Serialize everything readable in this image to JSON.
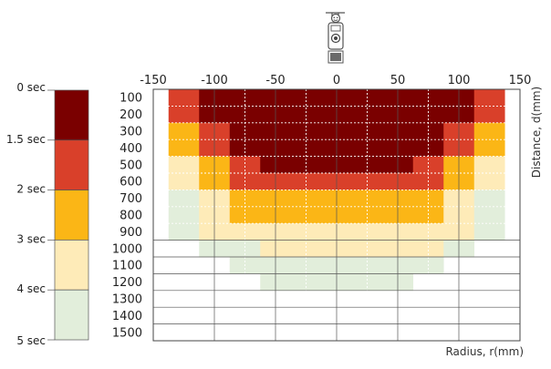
{
  "chart_data": {
    "type": "heatmap",
    "x_axis": {
      "label": "Radius, r(mm)",
      "range": [
        -150,
        150
      ],
      "ticks": [
        -150,
        -100,
        -50,
        0,
        50,
        100,
        150
      ],
      "position": "top"
    },
    "y_axis": {
      "label": "Distance, d(mm)",
      "range": [
        50,
        1550
      ],
      "ticks": [
        100,
        200,
        300,
        400,
        500,
        600,
        700,
        800,
        900,
        1000,
        1100,
        1200,
        1300,
        1400,
        1500
      ],
      "inverted": true
    },
    "legend": {
      "placement": "left",
      "labels": [
        "0 sec",
        "1.5 sec",
        "2 sec",
        "3 sec",
        "4 sec",
        "5 sec"
      ],
      "bands": [
        {
          "level": 1,
          "color": "#7a0000"
        },
        {
          "level": 2,
          "color": "#d9402a"
        },
        {
          "level": 3,
          "color": "#fbb616"
        },
        {
          "level": 4,
          "color": "#feebb8"
        },
        {
          "level": 5,
          "color": "#e2eedb"
        }
      ]
    },
    "grid": true,
    "cell_width_mm": 25,
    "x_columns": [
      -125,
      -100,
      -75,
      -50,
      -25,
      0,
      25,
      50,
      75,
      100,
      125
    ],
    "rows": [
      {
        "d": 100,
        "levels": [
          2,
          1,
          1,
          1,
          1,
          1,
          1,
          1,
          1,
          1,
          2
        ]
      },
      {
        "d": 200,
        "levels": [
          2,
          1,
          1,
          1,
          1,
          1,
          1,
          1,
          1,
          1,
          2
        ]
      },
      {
        "d": 300,
        "levels": [
          3,
          2,
          1,
          1,
          1,
          1,
          1,
          1,
          1,
          2,
          3
        ]
      },
      {
        "d": 400,
        "levels": [
          3,
          2,
          1,
          1,
          1,
          1,
          1,
          1,
          1,
          2,
          3
        ]
      },
      {
        "d": 500,
        "levels": [
          4,
          3,
          2,
          1,
          1,
          1,
          1,
          1,
          2,
          3,
          4
        ]
      },
      {
        "d": 600,
        "levels": [
          4,
          3,
          2,
          2,
          2,
          2,
          2,
          2,
          2,
          3,
          4
        ]
      },
      {
        "d": 700,
        "levels": [
          5,
          4,
          3,
          3,
          3,
          3,
          3,
          3,
          3,
          4,
          5
        ]
      },
      {
        "d": 800,
        "levels": [
          5,
          4,
          3,
          3,
          3,
          3,
          3,
          3,
          3,
          4,
          5
        ]
      },
      {
        "d": 900,
        "levels": [
          5,
          4,
          4,
          4,
          4,
          4,
          4,
          4,
          4,
          4,
          5
        ]
      },
      {
        "d": 1000,
        "levels": [
          0,
          5,
          5,
          4,
          4,
          4,
          4,
          4,
          4,
          5,
          0
        ]
      },
      {
        "d": 1100,
        "levels": [
          0,
          0,
          5,
          5,
          5,
          5,
          5,
          5,
          5,
          0,
          0
        ]
      },
      {
        "d": 1200,
        "levels": [
          0,
          0,
          0,
          5,
          5,
          5,
          5,
          5,
          0,
          0,
          0
        ]
      },
      {
        "d": 1300,
        "levels": [
          0,
          0,
          0,
          0,
          0,
          0,
          0,
          0,
          0,
          0,
          0
        ]
      },
      {
        "d": 1400,
        "levels": [
          0,
          0,
          0,
          0,
          0,
          0,
          0,
          0,
          0,
          0,
          0
        ]
      },
      {
        "d": 1500,
        "levels": [
          0,
          0,
          0,
          0,
          0,
          0,
          0,
          0,
          0,
          0,
          0
        ]
      }
    ]
  },
  "sensor_icon": "smoke-detector-icon"
}
